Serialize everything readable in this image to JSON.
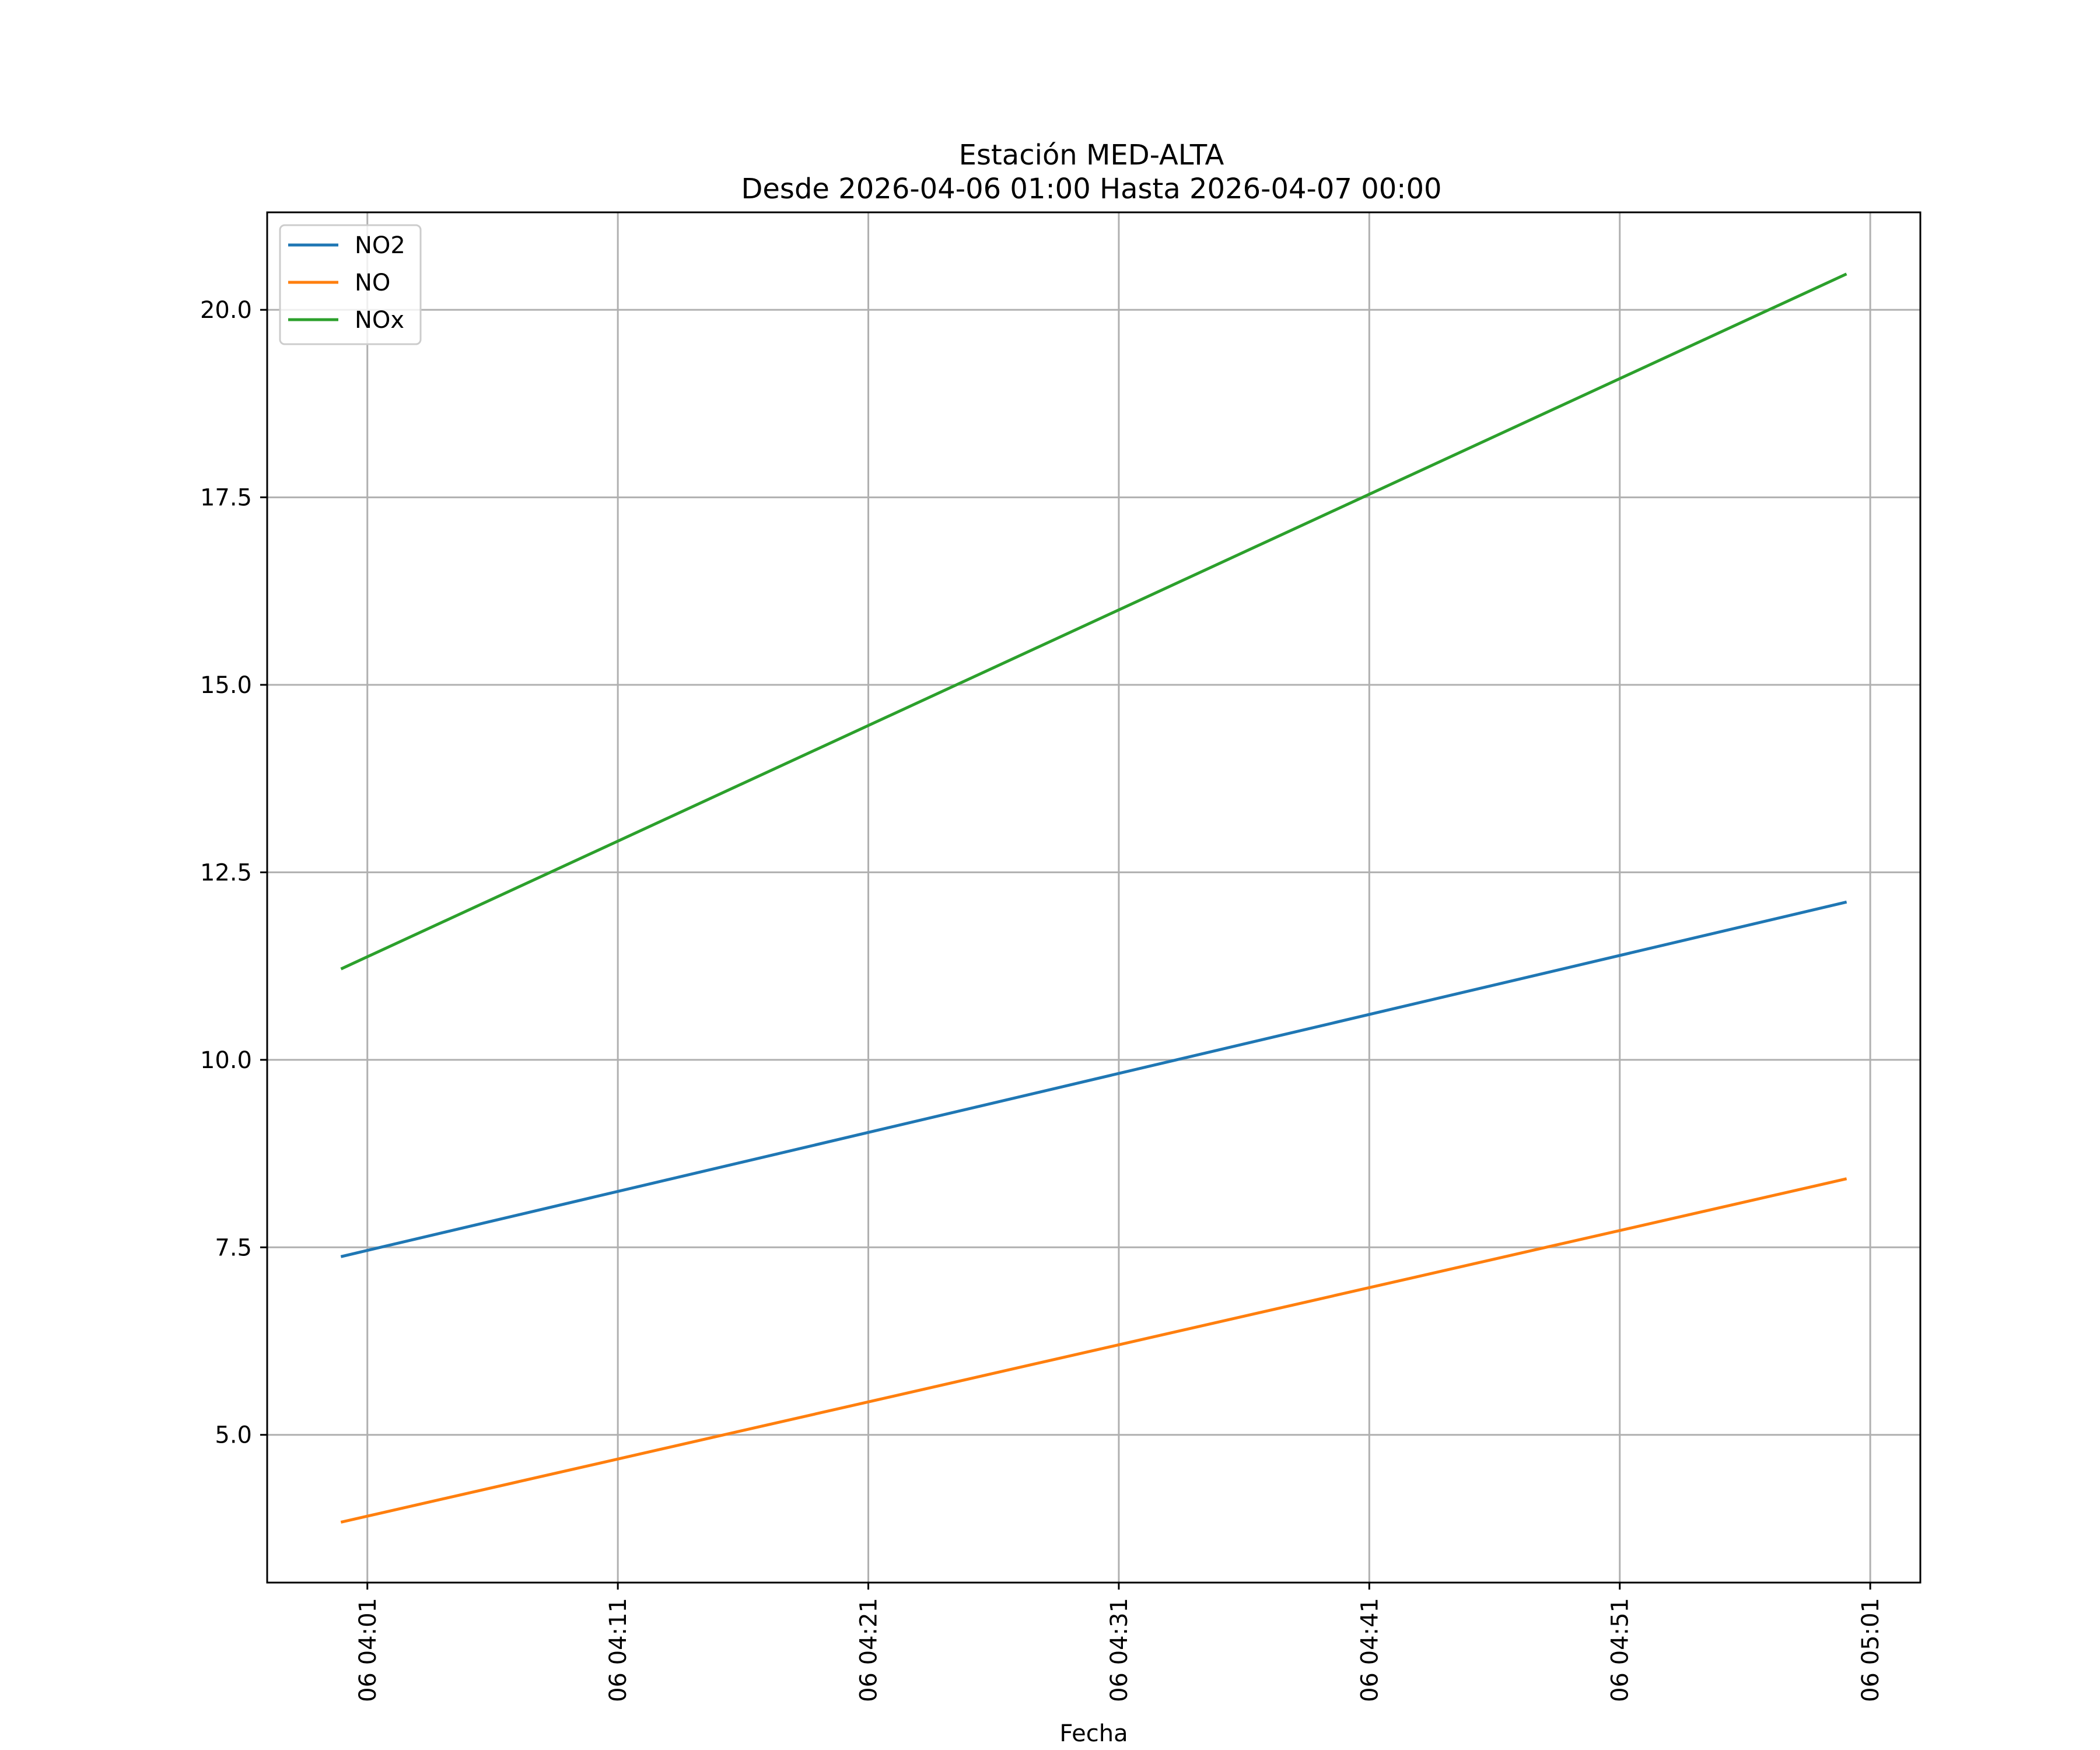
{
  "chart_data": {
    "type": "line",
    "title": "Estación MED-ALTA",
    "subtitle": "Desde 2026-04-06 01:00 Hasta 2026-04-07 00:00",
    "xlabel": "Fecha",
    "ylabel": "",
    "x": [
      "2026-04-06 04:00",
      "2026-04-06 05:00"
    ],
    "xlim": [
      "2026-04-06 03:57",
      "2026-04-06 05:03"
    ],
    "ylim": [
      3.03,
      21.3
    ],
    "x_ticks": [
      {
        "t": "2026-04-06 04:01",
        "label": "06 04:01"
      },
      {
        "t": "2026-04-06 04:11",
        "label": "06 04:11"
      },
      {
        "t": "2026-04-06 04:21",
        "label": "06 04:21"
      },
      {
        "t": "2026-04-06 04:31",
        "label": "06 04:31"
      },
      {
        "t": "2026-04-06 04:41",
        "label": "06 04:41"
      },
      {
        "t": "2026-04-06 04:51",
        "label": "06 04:51"
      },
      {
        "t": "2026-04-06 05:01",
        "label": "06 05:01"
      }
    ],
    "y_ticks": [
      {
        "value": 5.0,
        "label": "5.0"
      },
      {
        "value": 7.5,
        "label": "7.5"
      },
      {
        "value": 10.0,
        "label": "10.0"
      },
      {
        "value": 12.5,
        "label": "12.5"
      },
      {
        "value": 15.0,
        "label": "15.0"
      },
      {
        "value": 17.5,
        "label": "17.5"
      },
      {
        "value": 20.0,
        "label": "20.0"
      }
    ],
    "grid": true,
    "legend_position": "top-left",
    "series": [
      {
        "name": "NO2",
        "color": "#1f77b4",
        "values": [
          7.38,
          12.1
        ]
      },
      {
        "name": "NO",
        "color": "#ff7f0e",
        "values": [
          3.84,
          8.41
        ]
      },
      {
        "name": "NOx",
        "color": "#2ca02c",
        "values": [
          11.22,
          20.47
        ]
      }
    ]
  }
}
